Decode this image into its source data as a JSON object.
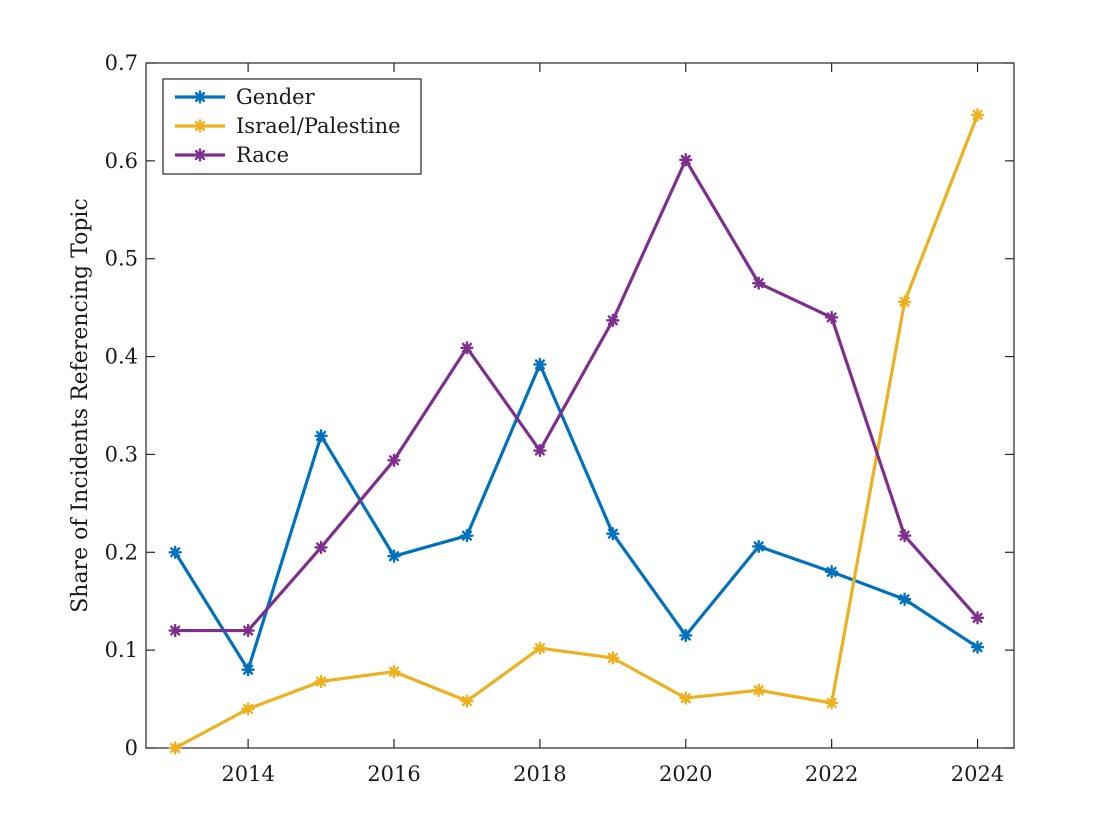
{
  "chart_data": {
    "type": "line",
    "title": "",
    "xlabel": "",
    "ylabel": "Share of Incidents Referencing Topic",
    "x": [
      2013,
      2014,
      2015,
      2016,
      2017,
      2018,
      2019,
      2020,
      2021,
      2022,
      2023,
      2024
    ],
    "xlim": [
      2012.6,
      2024.5
    ],
    "ylim": [
      0,
      0.7
    ],
    "xticks": [
      2014,
      2016,
      2018,
      2020,
      2022,
      2024
    ],
    "yticks": [
      0,
      0.1,
      0.2,
      0.3,
      0.4,
      0.5,
      0.6,
      0.7
    ],
    "ytick_labels": [
      "0",
      "0.1",
      "0.2",
      "0.3",
      "0.4",
      "0.5",
      "0.6",
      "0.7"
    ],
    "grid": false,
    "legend_position": "top-left",
    "marker": "asterisk",
    "series": [
      {
        "name": "Gender",
        "color": "#0072BD",
        "values": [
          0.2,
          0.08,
          0.319,
          0.196,
          0.217,
          0.392,
          0.219,
          0.115,
          0.206,
          0.18,
          0.152,
          0.103
        ]
      },
      {
        "name": "Israel/Palestine",
        "color": "#EDB120",
        "values": [
          0.0,
          0.04,
          0.068,
          0.078,
          0.048,
          0.102,
          0.092,
          0.051,
          0.059,
          0.046,
          0.456,
          0.647
        ]
      },
      {
        "name": "Race",
        "color": "#7E2F8E",
        "values": [
          0.12,
          0.12,
          0.205,
          0.294,
          0.409,
          0.304,
          0.437,
          0.601,
          0.475,
          0.44,
          0.217,
          0.133
        ]
      }
    ]
  }
}
